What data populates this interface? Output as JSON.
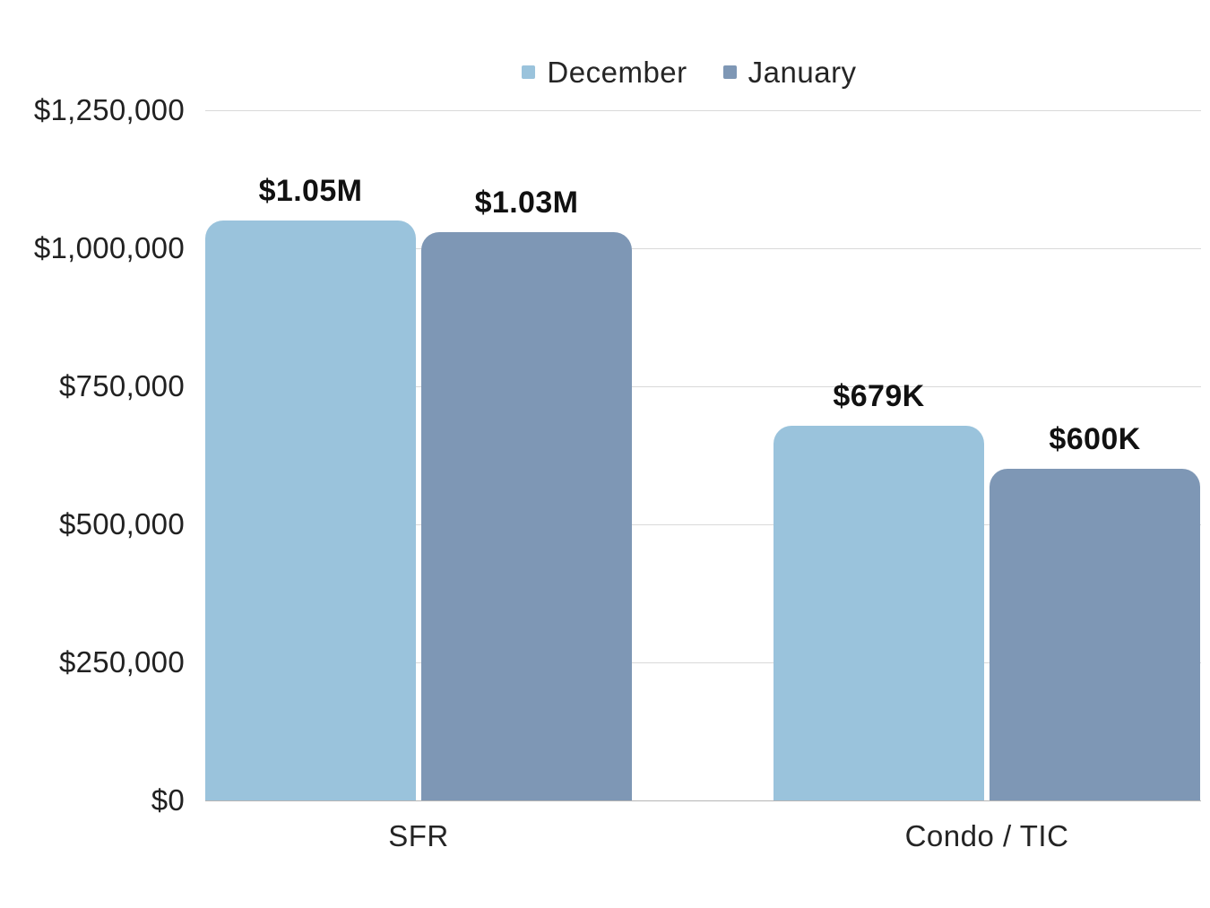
{
  "chart_data": {
    "type": "bar",
    "title": "",
    "xlabel": "",
    "ylabel": "",
    "categories": [
      "SFR",
      "Condo / TIC"
    ],
    "series": [
      {
        "name": "December",
        "color": "#9AC3DC",
        "values": [
          1050000,
          679000
        ],
        "data_labels": [
          "$1.05M",
          "$679K"
        ]
      },
      {
        "name": "January",
        "color": "#7E97B5",
        "values": [
          1030000,
          600000
        ],
        "data_labels": [
          "$1.03M",
          "$600K"
        ]
      }
    ],
    "ylim": [
      0,
      1250000
    ],
    "yticks": [
      1250000,
      1000000,
      750000,
      500000,
      250000,
      0
    ],
    "ytick_labels": [
      "$1,250,000",
      "$1,000,000",
      "$750,000",
      "$500,000",
      "$250,000",
      "$0"
    ],
    "grid": true,
    "legend_position": "top"
  },
  "colors": {
    "background": "#FFFFFF",
    "december_bar": "#9AC3DC",
    "january_bar": "#7E97B5",
    "gridline": "#D9D9D9",
    "zero_line": "#B5B5B5",
    "axis_text": "#212121",
    "data_label_text": "#111111"
  }
}
